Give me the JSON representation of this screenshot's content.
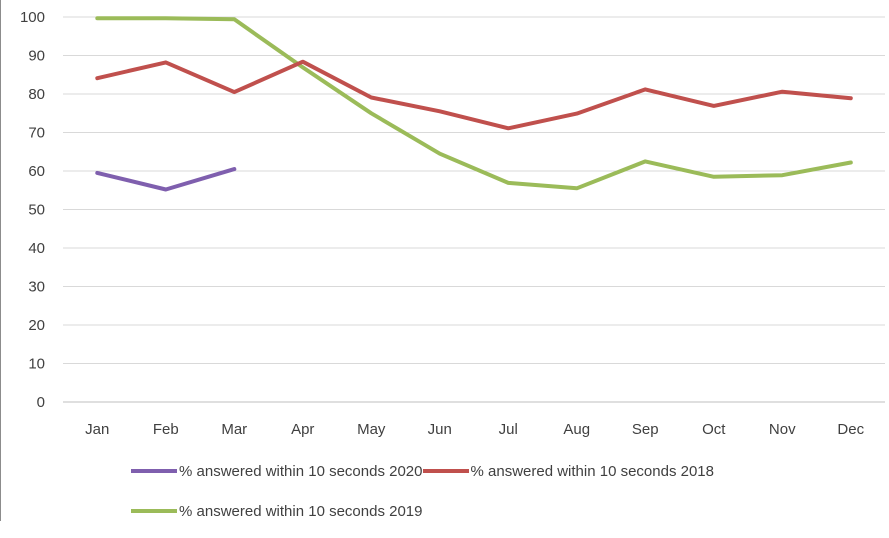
{
  "chart_data": {
    "type": "line",
    "title": "",
    "xlabel": "",
    "ylabel": "",
    "categories": [
      "Jan",
      "Feb",
      "Mar",
      "Apr",
      "May",
      "Jun",
      "Jul",
      "Aug",
      "Sep",
      "Oct",
      "Nov",
      "Dec"
    ],
    "yticks": [
      0,
      10,
      20,
      30,
      40,
      50,
      60,
      70,
      80,
      90,
      100
    ],
    "ylim": [
      0,
      100
    ],
    "grid": true,
    "legend_position": "bottom",
    "series": [
      {
        "name": "% answered within 10 seconds 2020",
        "color": "#7f5fae",
        "values": [
          59.5,
          55.2,
          60.5,
          null,
          null,
          null,
          null,
          null,
          null,
          null,
          null,
          null
        ]
      },
      {
        "name": "% answered within 10 seconds 2018",
        "color": "#c0504d",
        "values": [
          84.1,
          88.2,
          80.5,
          88.4,
          79.1,
          75.5,
          71.1,
          74.9,
          81.2,
          76.9,
          80.6,
          78.9
        ]
      },
      {
        "name": "% answered within 10 seconds 2019",
        "color": "#9bbb59",
        "values": [
          99.7,
          99.7,
          99.4,
          86.9,
          75.0,
          64.5,
          56.9,
          55.5,
          62.5,
          58.5,
          58.9,
          62.2
        ]
      }
    ]
  }
}
